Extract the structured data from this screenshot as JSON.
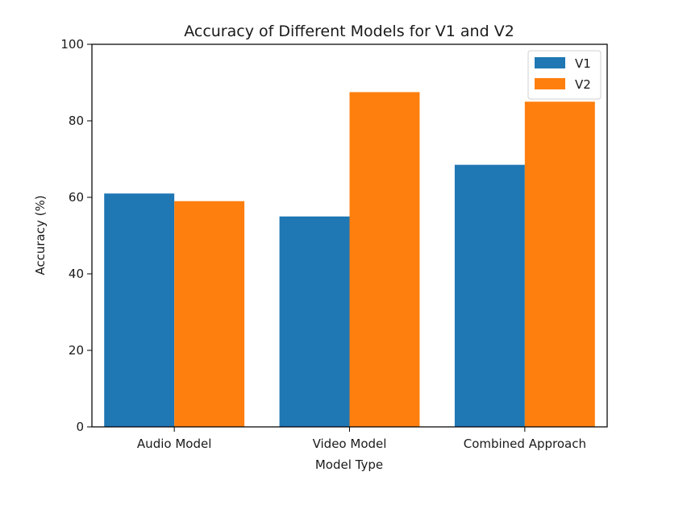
{
  "chart_data": {
    "type": "bar",
    "title": "Accuracy of Different Models for V1 and V2",
    "xlabel": "Model Type",
    "ylabel": "Accuracy (%)",
    "categories": [
      "Audio Model",
      "Video Model",
      "Combined Approach"
    ],
    "series": [
      {
        "name": "V1",
        "values": [
          61,
          55,
          68.5
        ],
        "color": "#1f77b4"
      },
      {
        "name": "V2",
        "values": [
          59,
          87.5,
          85
        ],
        "color": "#ff7f0e"
      }
    ],
    "ylim": [
      0,
      100
    ],
    "yticks": [
      0,
      20,
      40,
      60,
      80,
      100
    ],
    "grid": false,
    "legend_position": "top-right"
  }
}
